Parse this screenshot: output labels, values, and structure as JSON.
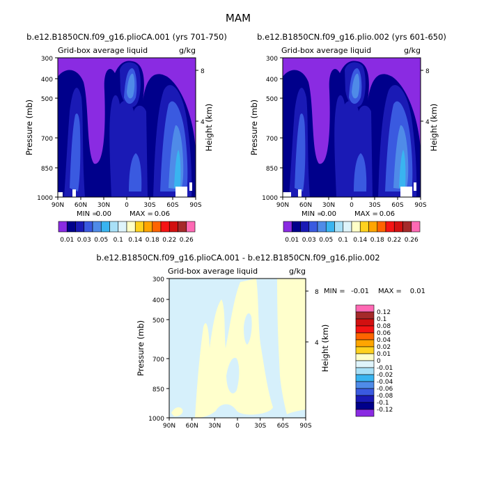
{
  "figure": {
    "suptitle": "MAM",
    "colors": {
      "background_purple": "#8a2be2",
      "white": "#ffffff",
      "diff_background": "#d6f0fb",
      "diff_positive": "#ffffcc"
    }
  },
  "chart_data": [
    {
      "type": "heatmap",
      "id": "panel_a",
      "title": "b.e12.B1850CN.f09_g16.plioCA.001 (yrs 701-750)",
      "subtitle_left": "Grid-box average liquid",
      "subtitle_right": "g/kg",
      "ylabel": "Pressure (mb)",
      "ylabel_right": "Height (km)",
      "x_ticks": [
        "90N",
        "60N",
        "30N",
        "0",
        "30S",
        "60S",
        "90S"
      ],
      "y_ticks": [
        "300",
        "400",
        "500",
        "700",
        "850",
        "1000"
      ],
      "y_right_ticks": [
        "8",
        "4"
      ],
      "stats": {
        "min_label": "MIN =",
        "min": "0.00",
        "max_label": "MAX =",
        "max": "0.06"
      },
      "ylim": [
        1000,
        300
      ],
      "xlim": [
        90,
        -90
      ]
    },
    {
      "type": "heatmap",
      "id": "panel_b",
      "title": "b.e12.B1850CN.f09_g16.plio.002 (yrs 601-650)",
      "subtitle_left": "Grid-box average liquid",
      "subtitle_right": "g/kg",
      "ylabel": "Pressure (mb)",
      "ylabel_right": "Height (km)",
      "x_ticks": [
        "90N",
        "60N",
        "30N",
        "0",
        "30S",
        "60S",
        "90S"
      ],
      "y_ticks": [
        "300",
        "400",
        "500",
        "700",
        "850",
        "1000"
      ],
      "y_right_ticks": [
        "8",
        "4"
      ],
      "stats": {
        "min_label": "MIN =",
        "min": "0.00",
        "max_label": "MAX =",
        "max": "0.06"
      },
      "ylim": [
        1000,
        300
      ],
      "xlim": [
        90,
        -90
      ]
    },
    {
      "type": "heatmap",
      "id": "panel_c",
      "title": "b.e12.B1850CN.f09_g16.plioCA.001 - b.e12.B1850CN.f09_g16.plio.002",
      "subtitle_left": "Grid-box average liquid",
      "subtitle_right": "g/kg",
      "ylabel": "Pressure (mb)",
      "ylabel_right": "Height (km)",
      "x_ticks": [
        "90N",
        "60N",
        "30N",
        "0",
        "30S",
        "60S",
        "90S"
      ],
      "y_ticks": [
        "300",
        "400",
        "500",
        "700",
        "850",
        "1000"
      ],
      "y_right_ticks": [
        "8",
        "4"
      ],
      "stats": {
        "min_label": "MIN =",
        "min": "-0.01",
        "max_label": "MAX =",
        "max": "0.01"
      },
      "ylim": [
        1000,
        300
      ],
      "xlim": [
        90,
        -90
      ]
    }
  ],
  "colorbars": {
    "horizontal": {
      "labels": [
        "0.01",
        "0.03",
        "0.05",
        "0.1",
        "0.14",
        "0.18",
        "0.22",
        "0.26"
      ],
      "colors": [
        "#8a2be2",
        "#00008b",
        "#1a1ab5",
        "#3a5ae0",
        "#4f8be8",
        "#39b4f0",
        "#a9e0f7",
        "#dff4fb",
        "#ffffc8",
        "#ffd21f",
        "#ffa500",
        "#ff6400",
        "#f51414",
        "#d21010",
        "#a52a2a",
        "#ff69b4"
      ]
    },
    "vertical": {
      "labels": [
        "0.12",
        "0.1",
        "0.08",
        "0.06",
        "0.04",
        "0.02",
        "0.01",
        "0",
        "-0.01",
        "-0.02",
        "-0.04",
        "-0.06",
        "-0.08",
        "-0.1",
        "-0.12"
      ],
      "colors": [
        "#ff69b4",
        "#a52a2a",
        "#d21010",
        "#f51414",
        "#ff6400",
        "#ffa500",
        "#ffd21f",
        "#ffffc8",
        "#dff4fb",
        "#a9e0f7",
        "#39b4f0",
        "#4f8be8",
        "#3a5ae0",
        "#1a1ab5",
        "#00008b",
        "#8a2be2"
      ]
    }
  }
}
